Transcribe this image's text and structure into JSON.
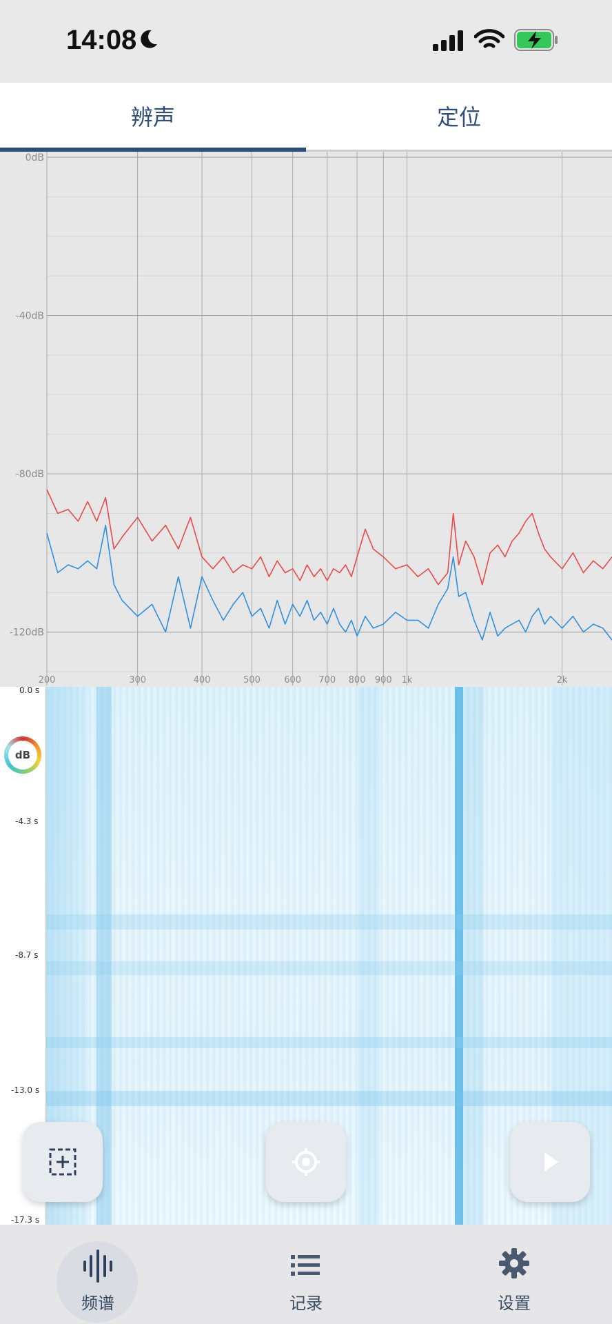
{
  "status_bar": {
    "time": "14:08"
  },
  "tabs": [
    {
      "label": "辨声",
      "active": true
    },
    {
      "label": "定位",
      "active": false
    }
  ],
  "chart_data": {
    "type": "line",
    "x_scale": "log",
    "xlim": [
      200,
      2500
    ],
    "ylim": [
      -130,
      0
    ],
    "y_ticks": [
      "0dB",
      "-40dB",
      "-80dB",
      "-120dB"
    ],
    "x_ticks": [
      "200",
      "300",
      "400",
      "500",
      "600",
      "700",
      "800",
      "900",
      "1k",
      "2k"
    ],
    "series": [
      {
        "color": "#e84a4a",
        "x": [
          200,
          210,
          220,
          230,
          240,
          250,
          260,
          270,
          280,
          300,
          320,
          340,
          360,
          380,
          400,
          420,
          440,
          460,
          480,
          500,
          520,
          540,
          560,
          580,
          600,
          620,
          640,
          660,
          680,
          700,
          720,
          740,
          760,
          780,
          800,
          830,
          860,
          900,
          950,
          1000,
          1050,
          1100,
          1150,
          1200,
          1230,
          1260,
          1300,
          1350,
          1400,
          1450,
          1500,
          1550,
          1600,
          1650,
          1700,
          1750,
          1800,
          1850,
          1900,
          2000,
          2100,
          2200,
          2300,
          2400,
          2500
        ],
        "values": [
          -84,
          -90,
          -89,
          -92,
          -87,
          -92,
          -86,
          -99,
          -96,
          -91,
          -97,
          -93,
          -99,
          -91,
          -101,
          -104,
          -101,
          -105,
          -103,
          -104,
          -101,
          -106,
          -102,
          -105,
          -104,
          -107,
          -103,
          -106,
          -104,
          -107,
          -104,
          -105,
          -103,
          -106,
          -101,
          -94,
          -99,
          -101,
          -104,
          -103,
          -106,
          -104,
          -108,
          -105,
          -90,
          -103,
          -97,
          -101,
          -108,
          -100,
          -98,
          -101,
          -97,
          -95,
          -92,
          -90,
          -95,
          -99,
          -101,
          -104,
          -100,
          -105,
          -102,
          -104,
          -101
        ]
      },
      {
        "color": "#2f8fe3",
        "x": [
          200,
          210,
          220,
          230,
          240,
          250,
          260,
          270,
          280,
          300,
          320,
          340,
          360,
          380,
          400,
          420,
          440,
          460,
          480,
          500,
          520,
          540,
          560,
          580,
          600,
          620,
          640,
          660,
          680,
          700,
          720,
          740,
          760,
          780,
          800,
          830,
          860,
          900,
          950,
          1000,
          1050,
          1100,
          1150,
          1200,
          1230,
          1260,
          1300,
          1350,
          1400,
          1450,
          1500,
          1550,
          1600,
          1650,
          1700,
          1750,
          1800,
          1850,
          1900,
          2000,
          2100,
          2200,
          2300,
          2400,
          2500
        ],
        "values": [
          -95,
          -105,
          -103,
          -104,
          -102,
          -104,
          -93,
          -108,
          -112,
          -116,
          -113,
          -120,
          -106,
          -119,
          -106,
          -112,
          -117,
          -113,
          -110,
          -116,
          -114,
          -119,
          -112,
          -118,
          -113,
          -116,
          -112,
          -117,
          -115,
          -118,
          -114,
          -118,
          -120,
          -117,
          -121,
          -116,
          -119,
          -118,
          -115,
          -117,
          -117,
          -119,
          -113,
          -109,
          -101,
          -111,
          -110,
          -117,
          -122,
          -115,
          -121,
          -119,
          -118,
          -117,
          -120,
          -116,
          -114,
          -118,
          -116,
          -119,
          -116,
          -120,
          -118,
          -119,
          -122
        ]
      }
    ]
  },
  "spectrogram": {
    "time_labels": [
      "0.0 s",
      "-4.3 s",
      "-8.7 s",
      "-13.0 s",
      "-17.3 s"
    ]
  },
  "db_dial": {
    "label": "dB"
  },
  "fabs": {
    "select": "select-region-icon",
    "locate": "target-icon",
    "play": "play-icon"
  },
  "bottom_nav": [
    {
      "label": "频谱",
      "icon": "waveform-icon",
      "active": true
    },
    {
      "label": "记录",
      "icon": "list-icon",
      "active": false
    },
    {
      "label": "设置",
      "icon": "gear-icon",
      "active": false
    }
  ]
}
